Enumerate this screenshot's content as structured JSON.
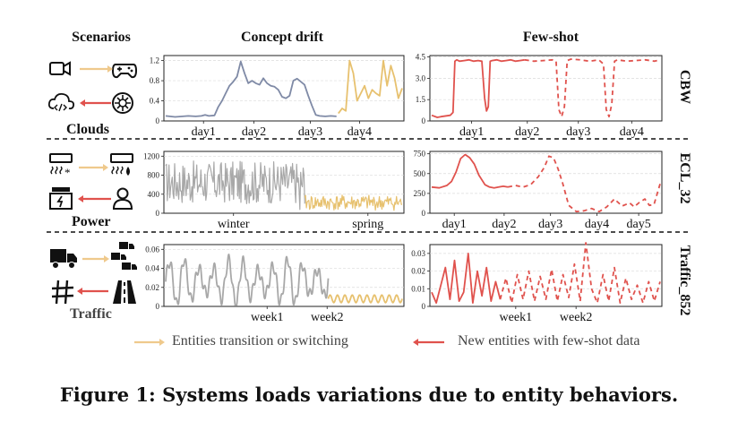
{
  "headers": {
    "scenarios": "Scenarios",
    "concept_drift": "Concept drift",
    "few_shot": "Few-shot"
  },
  "scenarios": [
    "Clouds",
    "Power",
    "Traffic"
  ],
  "row_labels": [
    "CBW",
    "ECL_32",
    "Traffic_852"
  ],
  "legend": {
    "transition": "Entities transition or switching",
    "new": "New entities with few-shot data"
  },
  "caption": "Figure 1: Systems loads variations due to entity behaviors.",
  "icons": [
    {
      "row": 0,
      "top_left": "camera-icon",
      "top_right": "gamepad-icon",
      "bottom_left": "cloud-code-icon",
      "bottom_right": "openai-logo-icon"
    },
    {
      "row": 1,
      "top_left": "air-conditioner-cool-icon",
      "top_right": "air-conditioner-heat-icon",
      "bottom_left": "power-station-icon",
      "bottom_right": "person-icon"
    },
    {
      "row": 2,
      "top_left": "truck-icon",
      "top_right": "truck-fleet-icon",
      "bottom_left": "intersection-icon",
      "bottom_right": "road-icon"
    }
  ],
  "colors": {
    "transition_arrow": "#efc98c",
    "new_arrow": "#e0524d",
    "gray_series": "#a8a8a8",
    "blue_gray_series": "#7f8aa6",
    "gold_series": "#e7c16f",
    "red_series": "#e0524d"
  },
  "chart_data": [
    {
      "id": "clouds-drift",
      "type": "line",
      "title": "",
      "xlabel": "",
      "ylabel": "",
      "ylim": [
        0,
        1.3
      ],
      "yticks": [
        "0",
        "0.4",
        "0.8",
        "1.2"
      ],
      "xticks": [
        "day1",
        "day2",
        "day3",
        "day4"
      ],
      "grid": true,
      "series": [
        {
          "color": "#7f8aa6",
          "style": "solid",
          "x": [
            0,
            0.5,
            0.9,
            1.2,
            1.6,
            1.9,
            2.1,
            2.3,
            2.6,
            2.8,
            3.0,
            3.2,
            3.4,
            3.6,
            3.8,
            4.0,
            4.2,
            4.4,
            4.6,
            4.8,
            5.0,
            5.2,
            5.4,
            5.6,
            5.8,
            6.0,
            6.2,
            6.4,
            6.6,
            6.8,
            7.0,
            7.2,
            7.4,
            7.6,
            7.8,
            8.0,
            8.2,
            8.5,
            8.8,
            9.1
          ],
          "y": [
            0.1,
            0.08,
            0.09,
            0.1,
            0.09,
            0.1,
            0.12,
            0.1,
            0.11,
            0.28,
            0.4,
            0.55,
            0.7,
            0.78,
            0.88,
            1.18,
            0.95,
            0.75,
            0.8,
            0.75,
            0.72,
            0.85,
            0.75,
            0.7,
            0.68,
            0.62,
            0.48,
            0.45,
            0.5,
            0.8,
            0.84,
            0.78,
            0.72,
            0.5,
            0.3,
            0.12,
            0.1,
            0.09,
            0.1,
            0.09
          ]
        },
        {
          "color": "#e7c16f",
          "style": "solid",
          "x": [
            9.2,
            9.4,
            9.6,
            9.8,
            10.0,
            10.2,
            10.4,
            10.6,
            10.8,
            11.0,
            11.2,
            11.4,
            11.6,
            11.8,
            12.0,
            12.2,
            12.4,
            12.6
          ],
          "y": [
            0.15,
            0.25,
            0.2,
            1.2,
            0.95,
            0.4,
            0.55,
            0.7,
            0.45,
            0.62,
            0.55,
            0.5,
            1.2,
            0.7,
            1.1,
            0.85,
            0.45,
            0.65
          ]
        }
      ]
    },
    {
      "id": "cbw-fewshot",
      "type": "line",
      "title": "",
      "xlabel": "",
      "ylabel": "",
      "ylim": [
        0,
        4.6
      ],
      "yticks": [
        "0",
        "1.5",
        "3.0",
        "4.5"
      ],
      "xticks": [
        "day1",
        "day2",
        "day3",
        "day4"
      ],
      "grid": true,
      "series": [
        {
          "color": "#e0524d",
          "style": "solid",
          "x": [
            0,
            0.6,
            1.0,
            2.0,
            2.3,
            2.5,
            2.7,
            3.0,
            3.5,
            4.0,
            4.5,
            5.0,
            5.4,
            5.7,
            5.9,
            6.1,
            6.3,
            6.5,
            7.0,
            7.5,
            8.0,
            8.5,
            9.0,
            9.5,
            10.0
          ],
          "y": [
            0.4,
            0.25,
            0.3,
            0.4,
            0.6,
            4.2,
            4.3,
            4.2,
            4.25,
            4.3,
            4.2,
            4.25,
            4.2,
            1.6,
            0.7,
            1.0,
            4.2,
            4.25,
            4.3,
            4.2,
            4.25,
            4.3,
            4.2,
            4.25,
            4.3
          ]
        },
        {
          "color": "#e0524d",
          "style": "dashed",
          "x": [
            10.0,
            11.0,
            12.0,
            13.0,
            13.4,
            13.7,
            14.0,
            14.3,
            14.6,
            15.0,
            16.0,
            17.0,
            18.0,
            18.5,
            18.8,
            19.1,
            19.4,
            19.7,
            20.0,
            21.0,
            22.0,
            23.0,
            24.0,
            24.6
          ],
          "y": [
            4.3,
            4.2,
            4.25,
            4.3,
            4.2,
            0.8,
            0.3,
            1.0,
            4.25,
            4.35,
            4.3,
            4.2,
            4.3,
            4.0,
            0.8,
            0.3,
            1.2,
            4.2,
            4.3,
            4.2,
            4.25,
            4.3,
            4.2,
            4.3
          ]
        }
      ]
    },
    {
      "id": "power-drift",
      "type": "line",
      "title": "",
      "xlabel": "",
      "ylabel": "",
      "ylim": [
        0,
        1300
      ],
      "yticks": [
        "0",
        "400",
        "800",
        "1200"
      ],
      "xticks": [
        "winter",
        "spring"
      ],
      "grid": true,
      "series": [
        {
          "color": "#a8a8a8",
          "style": "solid",
          "x": [
            0,
            100
          ],
          "y": [
            650,
            650
          ]
        },
        {
          "color": "#e7c16f",
          "style": "solid",
          "x": [
            100,
            170
          ],
          "y": [
            220,
            220
          ]
        }
      ]
    },
    {
      "id": "ecl-fewshot",
      "type": "line",
      "title": "",
      "xlabel": "",
      "ylabel": "",
      "ylim": [
        0,
        780
      ],
      "yticks": [
        "0",
        "250",
        "500",
        "750"
      ],
      "xticks": [
        "day1",
        "day2",
        "day3",
        "day4",
        "day5"
      ],
      "grid": true,
      "series": [
        {
          "color": "#e0524d",
          "style": "solid",
          "x": [
            0,
            0.5,
            1.0,
            1.3,
            1.6,
            1.9,
            2.2,
            2.5,
            2.8,
            3.1,
            3.5,
            3.8,
            4.1,
            4.4,
            4.7,
            5.0
          ],
          "y": [
            330,
            320,
            350,
            400,
            520,
            690,
            740,
            700,
            620,
            480,
            360,
            330,
            320,
            330,
            340,
            330
          ]
        },
        {
          "color": "#e0524d",
          "style": "dashed",
          "x": [
            5.0,
            5.5,
            6.0,
            6.5,
            7.0,
            7.4,
            7.7,
            8.0,
            8.3,
            8.6,
            9.0,
            9.5,
            10.0,
            10.5,
            11.0,
            11.5,
            12.0,
            12.5,
            13.0,
            13.3,
            13.6,
            14.0,
            14.3,
            14.6,
            15.0
          ],
          "y": [
            330,
            350,
            330,
            360,
            460,
            580,
            720,
            700,
            560,
            380,
            100,
            20,
            30,
            60,
            20,
            80,
            180,
            90,
            130,
            80,
            130,
            180,
            100,
            110,
            370
          ]
        }
      ]
    },
    {
      "id": "traffic-drift",
      "type": "line",
      "title": "",
      "xlabel": "",
      "ylabel": "",
      "ylim": [
        0,
        0.065
      ],
      "yticks": [
        "0",
        "0.02",
        "0.04",
        "0.06"
      ],
      "xticks": [
        "week1",
        "week2"
      ],
      "grid": true,
      "series": [
        {
          "color": "#a8a8a8",
          "style": "solid",
          "x": [
            0,
            11
          ],
          "y": [
            0.025,
            0.025
          ]
        },
        {
          "color": "#e7c16f",
          "style": "solid",
          "x": [
            11,
            16
          ],
          "y": [
            0.008,
            0.008
          ]
        }
      ]
    },
    {
      "id": "traffic-fewshot",
      "type": "line",
      "title": "",
      "xlabel": "",
      "ylabel": "",
      "ylim": [
        0,
        0.035
      ],
      "yticks": [
        "0",
        "0.01",
        "0.02",
        "0.03"
      ],
      "xticks": [
        "week1",
        "week2"
      ],
      "grid": true,
      "series": [
        {
          "color": "#e0524d",
          "style": "solid",
          "x": [
            0,
            0.4,
            0.8,
            1.2,
            1.6,
            2.0,
            2.4,
            2.8,
            3.2,
            3.6,
            4.0,
            4.4,
            4.8,
            5.2,
            5.6,
            6.0
          ],
          "y": [
            0.008,
            0.002,
            0.012,
            0.022,
            0.004,
            0.026,
            0.003,
            0.008,
            0.03,
            0.002,
            0.02,
            0.006,
            0.022,
            0.003,
            0.014,
            0.004
          ]
        },
        {
          "color": "#e0524d",
          "style": "dashed",
          "x": [
            6.0,
            6.5,
            7.0,
            7.5,
            8.0,
            8.5,
            9.0,
            9.5,
            10.0,
            10.5,
            11.0,
            11.5,
            12.0,
            12.5,
            13.0,
            13.5,
            14.0,
            14.5,
            15.0,
            15.5,
            16.0,
            16.5,
            17.0,
            17.5,
            18.0,
            18.5,
            19.0,
            19.5,
            20.0
          ],
          "y": [
            0.004,
            0.016,
            0.002,
            0.018,
            0.004,
            0.02,
            0.003,
            0.017,
            0.004,
            0.021,
            0.003,
            0.018,
            0.005,
            0.024,
            0.003,
            0.036,
            0.01,
            0.002,
            0.018,
            0.003,
            0.022,
            0.002,
            0.016,
            0.004,
            0.012,
            0.002,
            0.014,
            0.003,
            0.014
          ]
        }
      ]
    }
  ]
}
